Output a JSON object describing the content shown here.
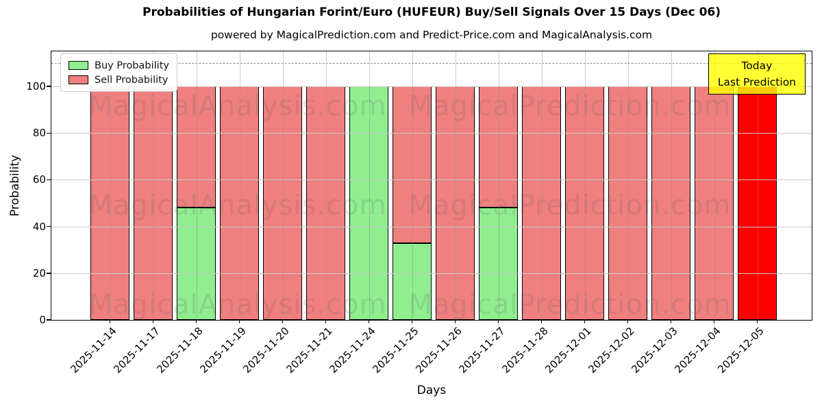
{
  "title": "Probabilities of Hungarian Forint/Euro (HUFEUR) Buy/Sell Signals Over 15 Days (Dec 06)",
  "subtitle": "powered by MagicalPrediction.com and Predict-Price.com and MagicalAnalysis.com",
  "legend": {
    "items": [
      {
        "label": "Buy Probability",
        "color": "#90ee90"
      },
      {
        "label": "Sell Probability",
        "color": "#f08080"
      }
    ]
  },
  "annotation": {
    "lines": [
      "Today",
      "Last Prediction"
    ],
    "bg_color": "#ffff00"
  },
  "watermarks": {
    "left_text": "MagicalAnalysis.com",
    "right_text": "MagicalPrediction.com"
  },
  "colors": {
    "buy": "#90ee90",
    "sell": "#f08080",
    "last_prediction_bar": "#ff0000",
    "bar_edge": "#000000",
    "grid": "#c8c8c8",
    "dashed_line": "#8a8a8a"
  },
  "chart_data": {
    "type": "bar",
    "stacked": true,
    "title": "Probabilities of Hungarian Forint/Euro (HUFEUR) Buy/Sell Signals Over 15 Days (Dec 06)",
    "xlabel": "Days",
    "ylabel": "Probability",
    "categories": [
      "2025-11-14",
      "2025-11-17",
      "2025-11-18",
      "2025-11-19",
      "2025-11-20",
      "2025-11-21",
      "2025-11-24",
      "2025-11-25",
      "2025-11-26",
      "2025-11-27",
      "2025-11-28",
      "2025-12-01",
      "2025-12-02",
      "2025-12-03",
      "2025-12-04",
      "2025-12-05"
    ],
    "series": [
      {
        "name": "Buy Probability",
        "color": "#90ee90",
        "values": [
          0,
          0,
          48,
          0,
          0,
          0,
          100,
          33,
          0,
          48,
          0,
          0,
          0,
          0,
          0,
          0
        ]
      },
      {
        "name": "Sell Probability",
        "color": "#f08080",
        "values": [
          100,
          100,
          52,
          100,
          100,
          100,
          0,
          67,
          100,
          52,
          100,
          100,
          100,
          100,
          100,
          100
        ],
        "point_colors": [
          "#f08080",
          "#f08080",
          "#f08080",
          "#f08080",
          "#f08080",
          "#f08080",
          "#f08080",
          "#f08080",
          "#f08080",
          "#f08080",
          "#f08080",
          "#f08080",
          "#f08080",
          "#f08080",
          "#f08080",
          "#ff0000"
        ]
      }
    ],
    "yticks": [
      0,
      20,
      40,
      60,
      80,
      100
    ],
    "ylim": [
      0,
      115
    ],
    "dashed_line_y": 110,
    "grid": true,
    "legend_position": "upper left"
  }
}
